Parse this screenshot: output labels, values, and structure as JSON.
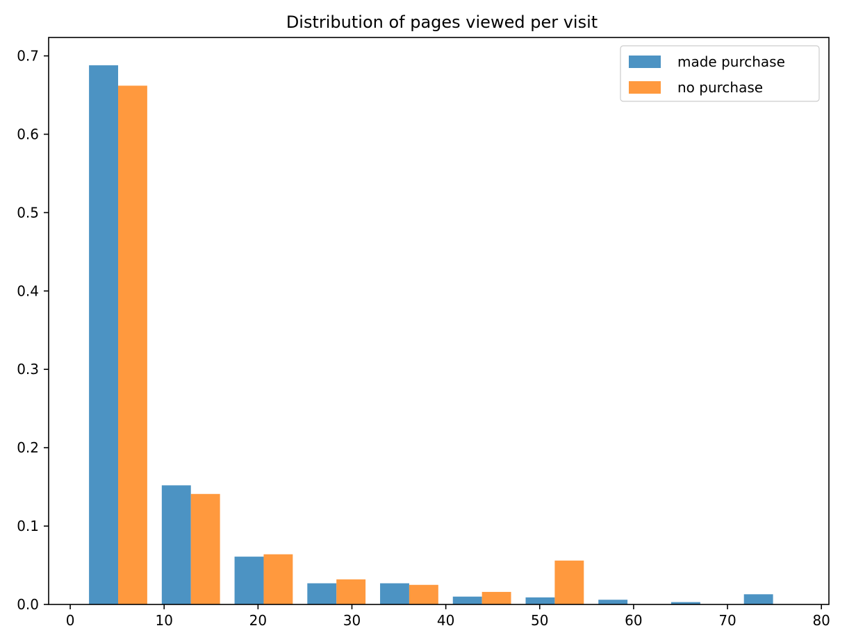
{
  "chart_data": {
    "type": "bar",
    "title": "Distribution of pages viewed per visit",
    "xlabel": "",
    "ylabel": "",
    "xlim": [
      -2.3,
      80.8
    ],
    "ylim": [
      0,
      0.7235
    ],
    "x_ticks": [
      0,
      10,
      20,
      30,
      40,
      50,
      60,
      70,
      80
    ],
    "x_tick_labels": [
      "0",
      "10",
      "20",
      "30",
      "40",
      "50",
      "60",
      "70",
      "80"
    ],
    "y_ticks": [
      0.0,
      0.1,
      0.2,
      0.3,
      0.4,
      0.5,
      0.6,
      0.7
    ],
    "y_tick_labels": [
      "0.0",
      "0.1",
      "0.2",
      "0.3",
      "0.4",
      "0.5",
      "0.6",
      "0.7"
    ],
    "bin_edges": [
      2,
      9.75,
      17.5,
      25.25,
      33,
      40.75,
      48.5,
      56.25,
      64,
      71.75
    ],
    "legend_position": "upper right",
    "grid": false,
    "series": [
      {
        "name": "made purchase",
        "color": "#4c93c3",
        "values": [
          0.688,
          0.152,
          0.061,
          0.027,
          0.027,
          0.01,
          0.009,
          0.006,
          0.003,
          0.013
        ]
      },
      {
        "name": "no purchase",
        "color": "#ff993e",
        "values": [
          0.662,
          0.141,
          0.064,
          0.032,
          0.025,
          0.016,
          0.056,
          0.0,
          0.0,
          0.0
        ]
      }
    ]
  }
}
